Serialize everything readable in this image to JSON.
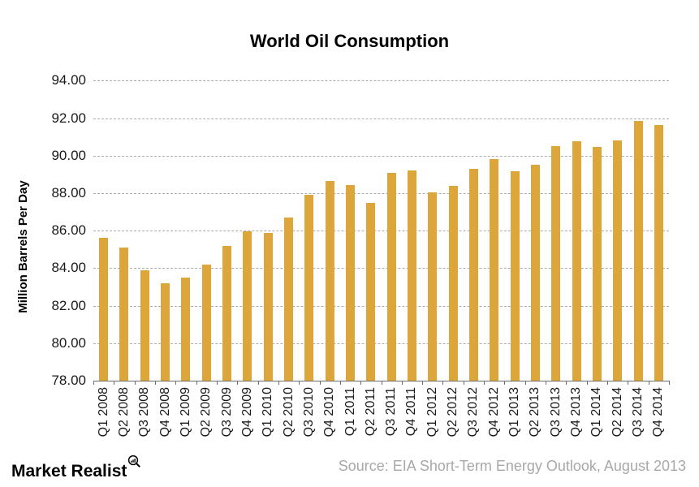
{
  "chart_data": {
    "type": "bar",
    "title": "World Oil Consumption",
    "xlabel": "",
    "ylabel": "Million Barrels Per Day",
    "categories": [
      "Q1 2008",
      "Q2 2008",
      "Q3 2008",
      "Q4 2008",
      "Q1 2009",
      "Q2 2009",
      "Q3 2009",
      "Q4 2009",
      "Q1 2010",
      "Q2 2010",
      "Q3 2010",
      "Q4 2010",
      "Q1 2011",
      "Q2 2011",
      "Q3 2011",
      "Q4 2011",
      "Q1 2012",
      "Q2 2012",
      "Q3 2012",
      "Q4 2012",
      "Q1 2013",
      "Q2 2013",
      "Q3 2013",
      "Q4 2013",
      "Q1 2014",
      "Q2 2014",
      "Q3 2014",
      "Q4 2014"
    ],
    "values": [
      85.6,
      85.1,
      83.9,
      83.2,
      83.5,
      84.2,
      85.2,
      85.95,
      85.9,
      86.7,
      87.9,
      88.65,
      88.45,
      87.5,
      89.1,
      89.2,
      88.05,
      88.4,
      89.3,
      89.8,
      89.15,
      89.5,
      90.5,
      90.75,
      90.45,
      90.8,
      91.85,
      91.65
    ],
    "ylim": [
      78,
      94
    ],
    "ytick_step": 2,
    "ytick_labels": [
      "78.00",
      "80.00",
      "82.00",
      "84.00",
      "86.00",
      "88.00",
      "90.00",
      "92.00",
      "94.00"
    ],
    "grid": "horizontal-dashed",
    "legend": "none",
    "bar_color": "#DDA63A"
  },
  "colors": {
    "background": "#ffffff",
    "bar": "#DDA63A",
    "gridline": "#ababab",
    "axis": "#6e6e6e",
    "text": "#1a1a1a",
    "source_text": "#a8a8a8"
  },
  "footer": {
    "brand": "Market Realist",
    "brand_icon": "magnifier-chart-icon",
    "source": "Source: EIA Short-Term Energy Outlook, August 2013"
  }
}
